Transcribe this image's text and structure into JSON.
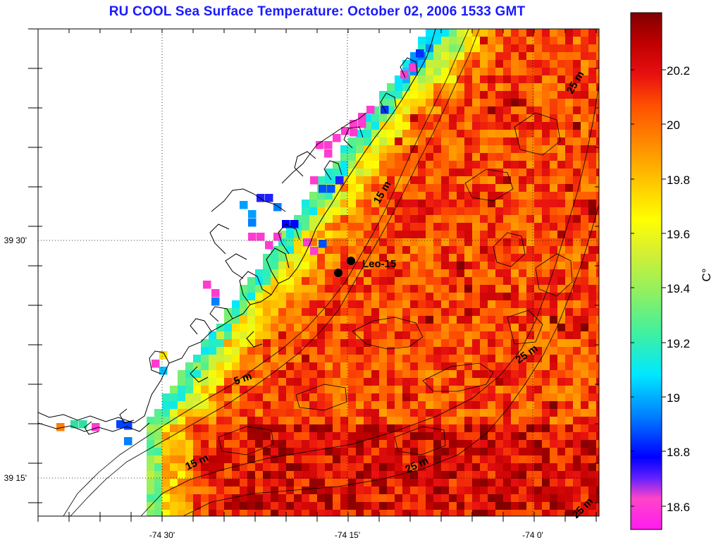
{
  "title": "RU COOL  Sea Surface Temperature:  October 02, 2006 1533 GMT",
  "axes": {
    "x_tick_labels": [
      "-74 30'",
      "-74 15'",
      "-74 0'"
    ],
    "y_tick_labels": [
      "39 30'",
      "39 15'"
    ]
  },
  "colorbar": {
    "unit": "C°",
    "min": 18.5,
    "max": 20.4,
    "tick_labels": [
      "20.2",
      "20",
      "19.8",
      "19.6",
      "19.4",
      "19.2",
      "19",
      "18.8",
      "18.6"
    ],
    "colors": [
      "#ff1cf0",
      "#ff44c8",
      "#6020ff",
      "#0000ff",
      "#0080ff",
      "#00e8ff",
      "#40f0a0",
      "#90f060",
      "#d8f030",
      "#ffff00",
      "#ffc000",
      "#ff9000",
      "#ff5000",
      "#e81010",
      "#c00000",
      "#800000"
    ]
  },
  "contour_labels": [
    "15 m",
    "5 m",
    "15 m",
    "25 m",
    "25 m",
    "25 m",
    "25 m"
  ],
  "station": {
    "label": "Leo-15"
  }
}
